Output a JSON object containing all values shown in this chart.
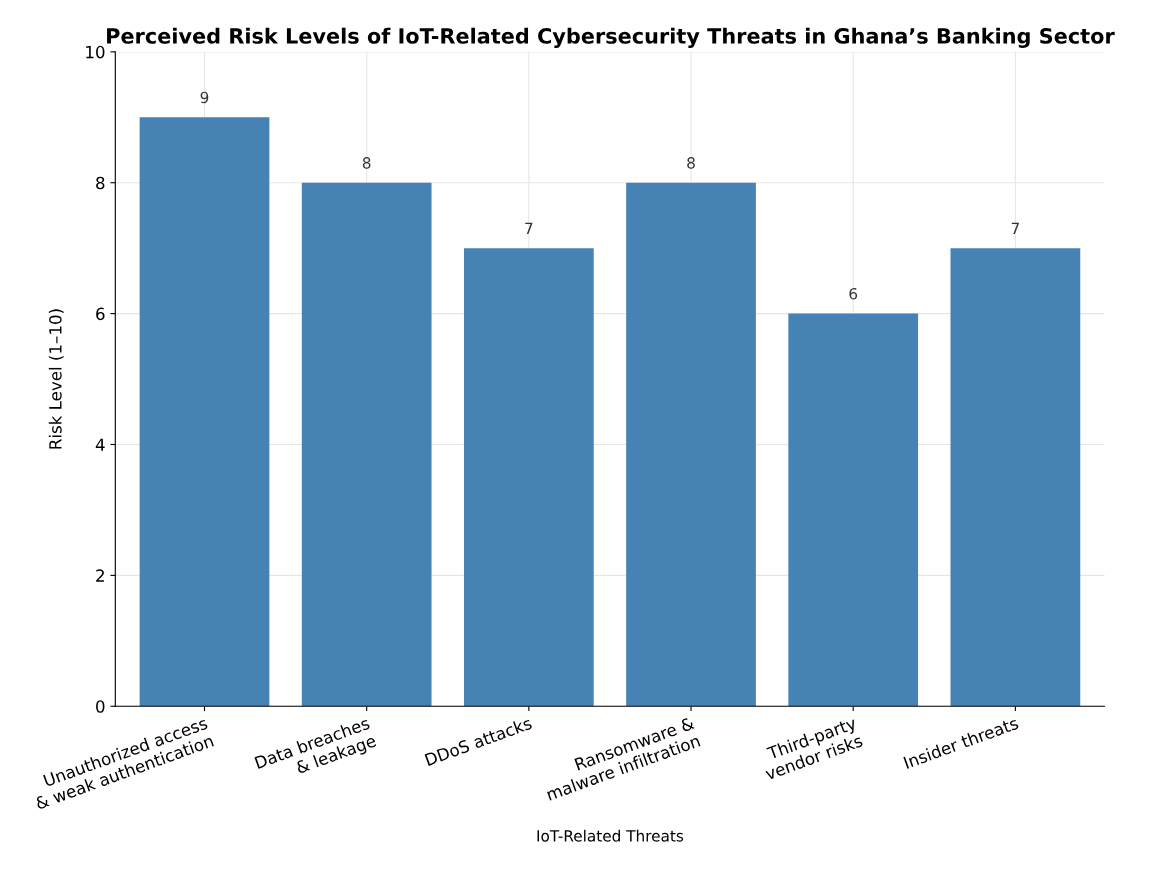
{
  "chart_data": {
    "type": "bar",
    "title": "Perceived Risk Levels of IoT-Related Cybersecurity Threats in Ghana’s Banking Sector",
    "xlabel": "IoT-Related Threats",
    "ylabel": "Risk Level (1–10)",
    "categories": [
      "Unauthorized access\n& weak authentication",
      "Data breaches\n& leakage",
      "DDoS attacks",
      "Ransomware &\nmalware infiltration",
      "Third-party\nvendor risks",
      "Insider threats"
    ],
    "values": [
      9,
      8,
      7,
      8,
      6,
      7
    ],
    "color": "#4682b4",
    "ylim": [
      0,
      10
    ],
    "yticks": [
      0,
      2,
      4,
      6,
      8,
      10
    ],
    "grid": true,
    "data_labels": true
  }
}
